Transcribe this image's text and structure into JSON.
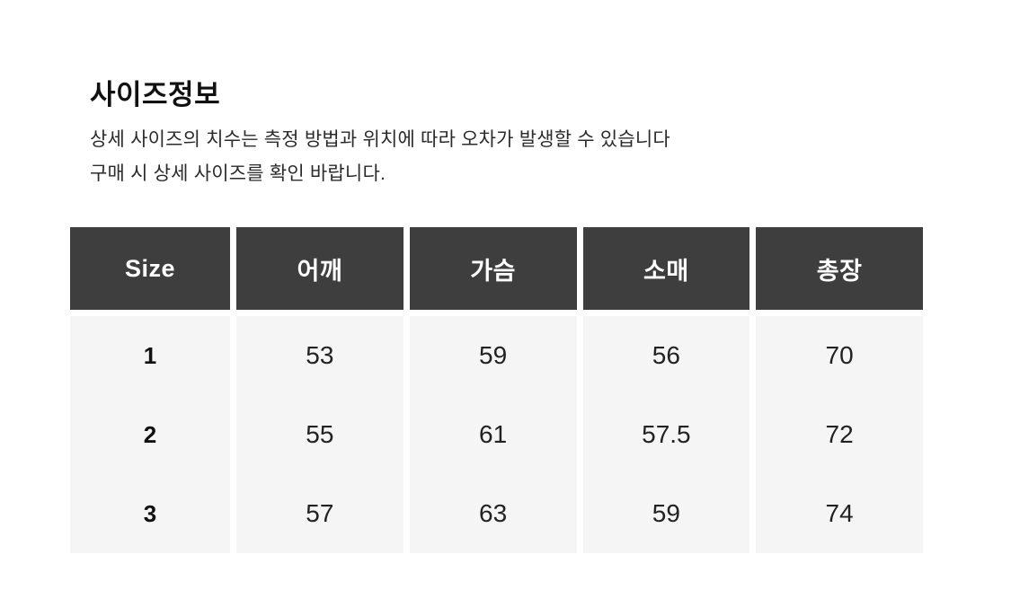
{
  "section": {
    "title": "사이즈정보",
    "notice_line1": "상세 사이즈의 치수는 측정 방법과 위치에 따라 오차가 발생할 수 있습니다",
    "notice_line2": "구매 시 상세 사이즈를 확인 바랍니다."
  },
  "size_table": {
    "headers": [
      "Size",
      "어깨",
      "가슴",
      "소매",
      "총장"
    ],
    "rows": [
      [
        "1",
        "53",
        "59",
        "56",
        "70"
      ],
      [
        "2",
        "55",
        "61",
        "57.5",
        "72"
      ],
      [
        "3",
        "57",
        "63",
        "59",
        "74"
      ]
    ]
  },
  "colors": {
    "header_bg": "#3e3e3e",
    "header_text": "#ffffff",
    "cell_bg": "#f5f5f6",
    "page_bg": "#ffffff",
    "body_text": "#222222"
  }
}
